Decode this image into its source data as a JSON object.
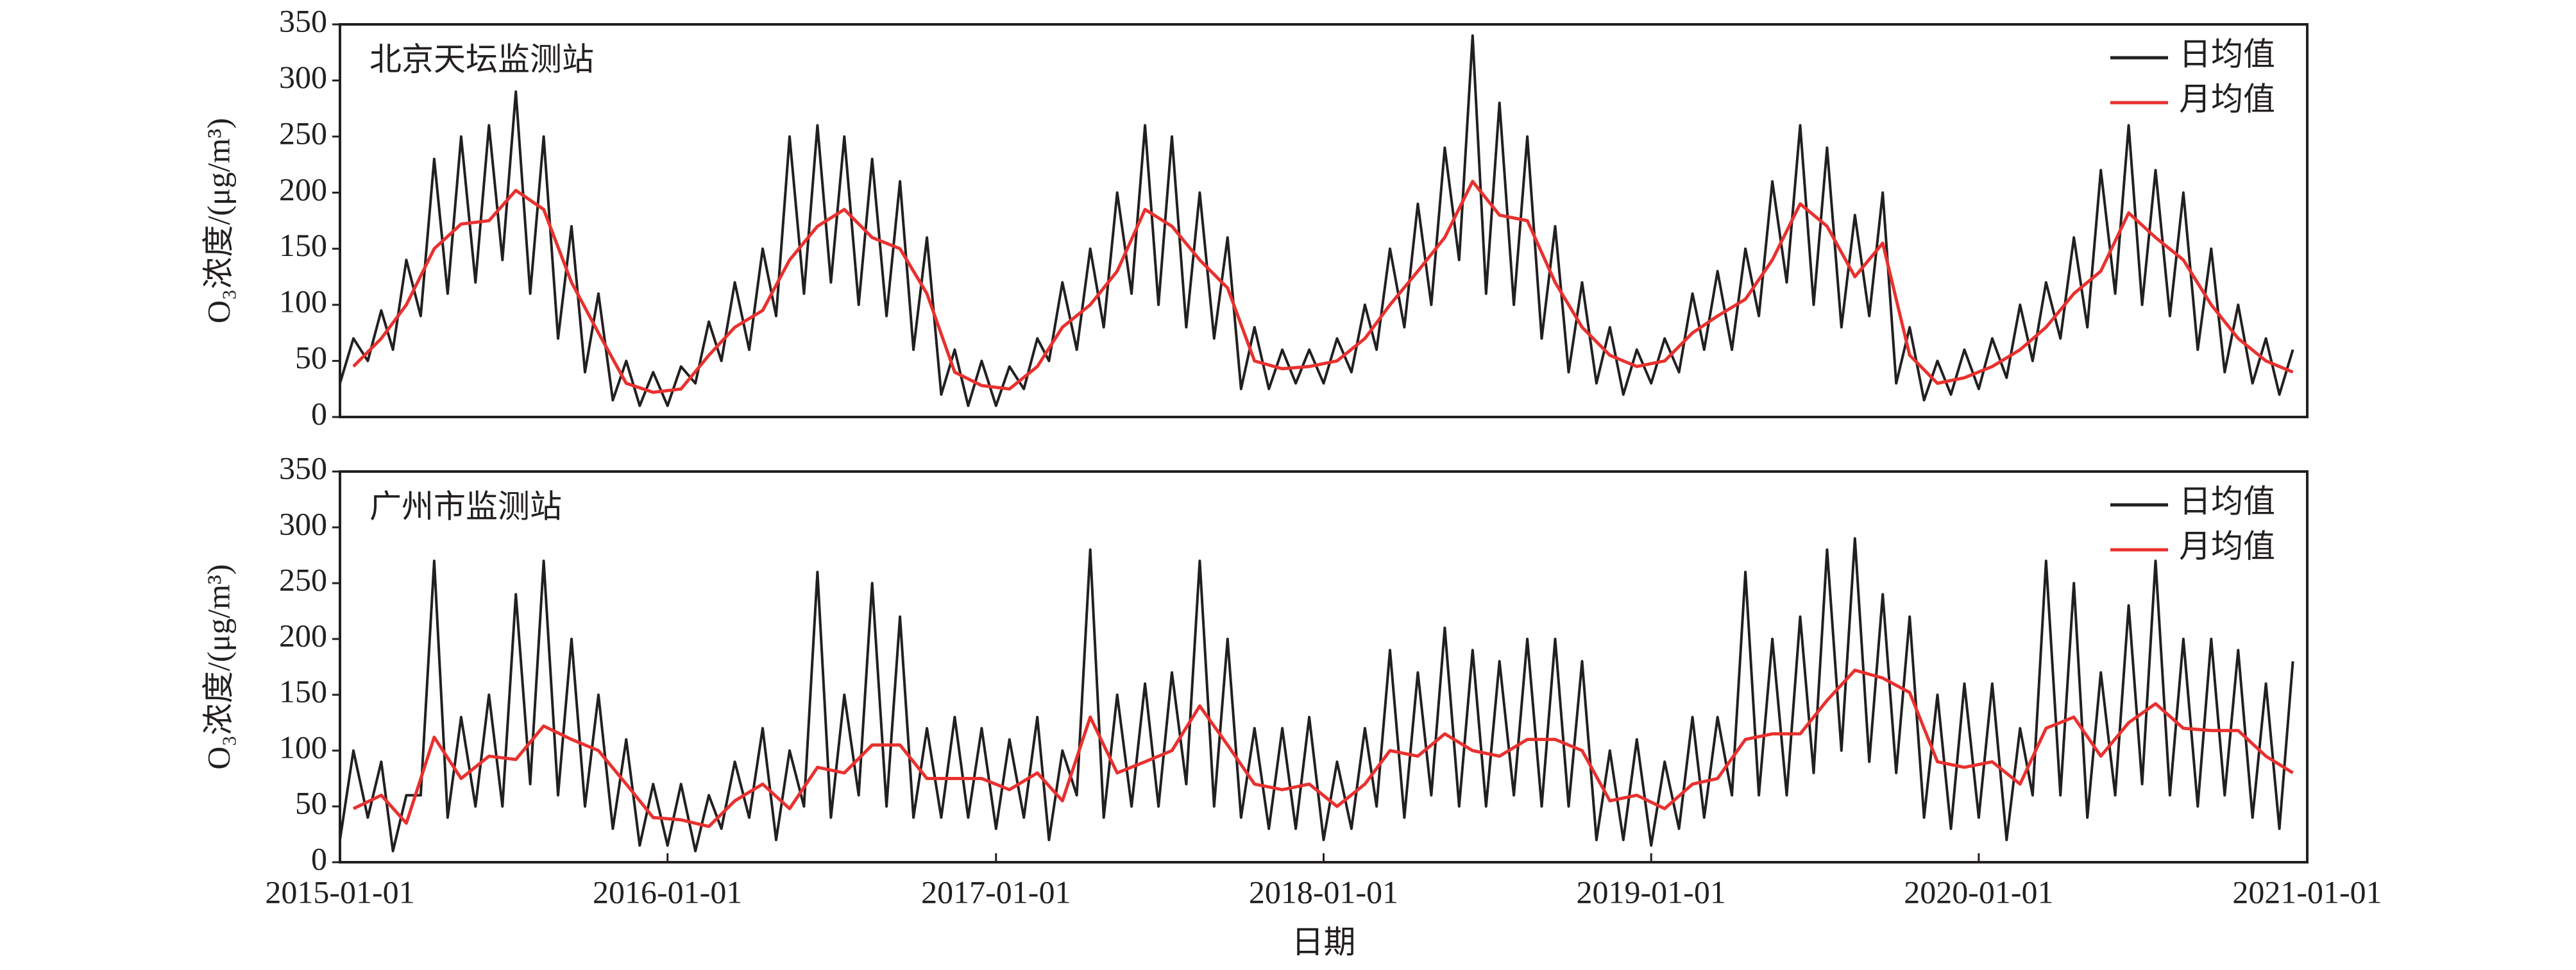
{
  "chart_data": [
    {
      "type": "line",
      "annotation": "北京天坛监测站",
      "y_label": "O₃浓度/(μg/m³)",
      "xlim": [
        "2015-01-01",
        "2021-01-01"
      ],
      "ylim": [
        0,
        350
      ],
      "yticks": [
        0,
        50,
        100,
        150,
        200,
        250,
        300,
        350
      ],
      "legend": "upper right",
      "series": [
        {
          "name": "日均值",
          "color": "#231f20",
          "x": [
            "2015-01-01",
            "2015-01-16",
            "2015-02-01",
            "2015-02-16",
            "2015-03-01",
            "2015-03-16",
            "2015-04-01",
            "2015-04-16",
            "2015-05-01",
            "2015-05-16",
            "2015-06-01",
            "2015-06-16",
            "2015-07-01",
            "2015-07-16",
            "2015-08-01",
            "2015-08-16",
            "2015-09-01",
            "2015-09-16",
            "2015-10-01",
            "2015-10-16",
            "2015-11-01",
            "2015-11-16",
            "2015-12-01",
            "2015-12-16",
            "2016-01-01",
            "2016-01-16",
            "2016-02-01",
            "2016-02-16",
            "2016-03-01",
            "2016-03-16",
            "2016-04-01",
            "2016-04-16",
            "2016-05-01",
            "2016-05-16",
            "2016-06-01",
            "2016-06-16",
            "2016-07-01",
            "2016-07-16",
            "2016-08-01",
            "2016-08-16",
            "2016-09-01",
            "2016-09-16",
            "2016-10-01",
            "2016-10-16",
            "2016-11-01",
            "2016-11-16",
            "2016-12-01",
            "2016-12-16",
            "2017-01-01",
            "2017-01-16",
            "2017-02-01",
            "2017-02-16",
            "2017-03-01",
            "2017-03-16",
            "2017-04-01",
            "2017-04-16",
            "2017-05-01",
            "2017-05-16",
            "2017-06-01",
            "2017-06-16",
            "2017-07-01",
            "2017-07-16",
            "2017-08-01",
            "2017-08-16",
            "2017-09-01",
            "2017-09-16",
            "2017-10-01",
            "2017-10-16",
            "2017-11-01",
            "2017-11-16",
            "2017-12-01",
            "2017-12-16",
            "2018-01-01",
            "2018-01-16",
            "2018-02-01",
            "2018-02-16",
            "2018-03-01",
            "2018-03-16",
            "2018-04-01",
            "2018-04-16",
            "2018-05-01",
            "2018-05-16",
            "2018-06-01",
            "2018-06-16",
            "2018-07-01",
            "2018-07-16",
            "2018-08-01",
            "2018-08-16",
            "2018-09-01",
            "2018-09-16",
            "2018-10-01",
            "2018-10-16",
            "2018-11-01",
            "2018-11-16",
            "2018-12-01",
            "2018-12-16",
            "2019-01-01",
            "2019-01-16",
            "2019-02-01",
            "2019-02-16",
            "2019-03-01",
            "2019-03-16",
            "2019-04-01",
            "2019-04-16",
            "2019-05-01",
            "2019-05-16",
            "2019-06-01",
            "2019-06-16",
            "2019-07-01",
            "2019-07-16",
            "2019-08-01",
            "2019-08-16",
            "2019-09-01",
            "2019-09-16",
            "2019-10-01",
            "2019-10-16",
            "2019-11-01",
            "2019-11-16",
            "2019-12-01",
            "2019-12-16",
            "2020-01-01",
            "2020-01-16",
            "2020-02-01",
            "2020-02-16",
            "2020-03-01",
            "2020-03-16",
            "2020-04-01",
            "2020-04-16",
            "2020-05-01",
            "2020-05-16",
            "2020-06-01",
            "2020-06-16",
            "2020-07-01",
            "2020-07-16",
            "2020-08-01",
            "2020-08-16",
            "2020-09-01",
            "2020-09-16",
            "2020-10-01",
            "2020-10-16",
            "2020-11-01",
            "2020-11-16",
            "2020-12-01",
            "2020-12-16"
          ],
          "values": [
            30,
            70,
            50,
            95,
            60,
            140,
            90,
            230,
            110,
            250,
            120,
            260,
            140,
            290,
            110,
            250,
            70,
            170,
            40,
            110,
            15,
            50,
            10,
            40,
            10,
            45,
            30,
            85,
            50,
            120,
            60,
            150,
            90,
            250,
            110,
            260,
            120,
            250,
            100,
            230,
            90,
            210,
            60,
            160,
            20,
            60,
            10,
            50,
            10,
            45,
            25,
            70,
            50,
            120,
            60,
            150,
            80,
            200,
            110,
            260,
            100,
            250,
            80,
            200,
            70,
            160,
            25,
            80,
            25,
            60,
            30,
            60,
            30,
            70,
            40,
            100,
            60,
            150,
            80,
            190,
            100,
            240,
            140,
            340,
            110,
            280,
            100,
            250,
            70,
            170,
            40,
            120,
            30,
            80,
            20,
            60,
            30,
            70,
            40,
            110,
            60,
            130,
            60,
            150,
            90,
            210,
            120,
            260,
            100,
            240,
            80,
            180,
            90,
            200,
            30,
            80,
            15,
            50,
            20,
            60,
            25,
            70,
            35,
            100,
            50,
            120,
            70,
            160,
            80,
            220,
            110,
            260,
            100,
            220,
            90,
            200,
            60,
            150,
            40,
            100,
            30,
            70,
            20,
            60
          ]
        },
        {
          "name": "月均值",
          "color": "#e8312f",
          "x": [
            "2015-01-16",
            "2015-02-16",
            "2015-03-16",
            "2015-04-16",
            "2015-05-16",
            "2015-06-16",
            "2015-07-16",
            "2015-08-16",
            "2015-09-16",
            "2015-10-16",
            "2015-11-16",
            "2015-12-16",
            "2016-01-16",
            "2016-02-16",
            "2016-03-16",
            "2016-04-16",
            "2016-05-16",
            "2016-06-16",
            "2016-07-16",
            "2016-08-16",
            "2016-09-16",
            "2016-10-16",
            "2016-11-16",
            "2016-12-16",
            "2017-01-16",
            "2017-02-16",
            "2017-03-16",
            "2017-04-16",
            "2017-05-16",
            "2017-06-16",
            "2017-07-16",
            "2017-08-16",
            "2017-09-16",
            "2017-10-16",
            "2017-11-16",
            "2017-12-16",
            "2018-01-16",
            "2018-02-16",
            "2018-03-16",
            "2018-04-16",
            "2018-05-16",
            "2018-06-16",
            "2018-07-16",
            "2018-08-16",
            "2018-09-16",
            "2018-10-16",
            "2018-11-16",
            "2018-12-16",
            "2019-01-16",
            "2019-02-16",
            "2019-03-16",
            "2019-04-16",
            "2019-05-16",
            "2019-06-16",
            "2019-07-16",
            "2019-08-16",
            "2019-09-16",
            "2019-10-16",
            "2019-11-16",
            "2019-12-16",
            "2020-01-16",
            "2020-02-16",
            "2020-03-16",
            "2020-04-16",
            "2020-05-16",
            "2020-06-16",
            "2020-07-16",
            "2020-08-16",
            "2020-09-16",
            "2020-10-16",
            "2020-11-16",
            "2020-12-16"
          ],
          "values": [
            45,
            70,
            100,
            150,
            172,
            175,
            202,
            185,
            120,
            75,
            30,
            22,
            25,
            55,
            80,
            95,
            140,
            170,
            185,
            160,
            150,
            110,
            40,
            28,
            25,
            45,
            80,
            100,
            130,
            185,
            170,
            140,
            115,
            50,
            43,
            45,
            50,
            70,
            100,
            130,
            160,
            210,
            180,
            175,
            120,
            80,
            55,
            45,
            50,
            75,
            90,
            105,
            140,
            190,
            170,
            125,
            155,
            55,
            30,
            35,
            45,
            60,
            80,
            110,
            130,
            182,
            160,
            140,
            100,
            70,
            50,
            40
          ]
        }
      ]
    },
    {
      "type": "line",
      "annotation": "广州市监测站",
      "y_label": "O₃浓度/(μg/m³)",
      "x_label": "日期",
      "xlim": [
        "2015-01-01",
        "2021-01-01"
      ],
      "xticks": [
        "2015-01-01",
        "2016-01-01",
        "2017-01-01",
        "2018-01-01",
        "2019-01-01",
        "2020-01-01",
        "2021-01-01"
      ],
      "ylim": [
        0,
        350
      ],
      "yticks": [
        0,
        50,
        100,
        150,
        200,
        250,
        300,
        350
      ],
      "legend": "upper right",
      "series": [
        {
          "name": "日均值",
          "color": "#231f20",
          "x": [
            "2015-01-01",
            "2015-01-16",
            "2015-02-01",
            "2015-02-16",
            "2015-03-01",
            "2015-03-16",
            "2015-04-01",
            "2015-04-16",
            "2015-05-01",
            "2015-05-16",
            "2015-06-01",
            "2015-06-16",
            "2015-07-01",
            "2015-07-16",
            "2015-08-01",
            "2015-08-16",
            "2015-09-01",
            "2015-09-16",
            "2015-10-01",
            "2015-10-16",
            "2015-11-01",
            "2015-11-16",
            "2015-12-01",
            "2015-12-16",
            "2016-01-01",
            "2016-01-16",
            "2016-02-01",
            "2016-02-16",
            "2016-03-01",
            "2016-03-16",
            "2016-04-01",
            "2016-04-16",
            "2016-05-01",
            "2016-05-16",
            "2016-06-01",
            "2016-06-16",
            "2016-07-01",
            "2016-07-16",
            "2016-08-01",
            "2016-08-16",
            "2016-09-01",
            "2016-09-16",
            "2016-10-01",
            "2016-10-16",
            "2016-11-01",
            "2016-11-16",
            "2016-12-01",
            "2016-12-16",
            "2017-01-01",
            "2017-01-16",
            "2017-02-01",
            "2017-02-16",
            "2017-03-01",
            "2017-03-16",
            "2017-04-01",
            "2017-04-16",
            "2017-05-01",
            "2017-05-16",
            "2017-06-01",
            "2017-06-16",
            "2017-07-01",
            "2017-07-16",
            "2017-08-01",
            "2017-08-16",
            "2017-09-01",
            "2017-09-16",
            "2017-10-01",
            "2017-10-16",
            "2017-11-01",
            "2017-11-16",
            "2017-12-01",
            "2017-12-16",
            "2018-01-01",
            "2018-01-16",
            "2018-02-01",
            "2018-02-16",
            "2018-03-01",
            "2018-03-16",
            "2018-04-01",
            "2018-04-16",
            "2018-05-01",
            "2018-05-16",
            "2018-06-01",
            "2018-06-16",
            "2018-07-01",
            "2018-07-16",
            "2018-08-01",
            "2018-08-16",
            "2018-09-01",
            "2018-09-16",
            "2018-10-01",
            "2018-10-16",
            "2018-11-01",
            "2018-11-16",
            "2018-12-01",
            "2018-12-16",
            "2019-01-01",
            "2019-01-16",
            "2019-02-01",
            "2019-02-16",
            "2019-03-01",
            "2019-03-16",
            "2019-04-01",
            "2019-04-16",
            "2019-05-01",
            "2019-05-16",
            "2019-06-01",
            "2019-06-16",
            "2019-07-01",
            "2019-07-16",
            "2019-08-01",
            "2019-08-16",
            "2019-09-01",
            "2019-09-16",
            "2019-10-01",
            "2019-10-16",
            "2019-11-01",
            "2019-11-16",
            "2019-12-01",
            "2019-12-16",
            "2020-01-01",
            "2020-01-16",
            "2020-02-01",
            "2020-02-16",
            "2020-03-01",
            "2020-03-16",
            "2020-04-01",
            "2020-04-16",
            "2020-05-01",
            "2020-05-16",
            "2020-06-01",
            "2020-06-16",
            "2020-07-01",
            "2020-07-16",
            "2020-08-01",
            "2020-08-16",
            "2020-09-01",
            "2020-09-16",
            "2020-10-01",
            "2020-10-16",
            "2020-11-01",
            "2020-11-16",
            "2020-12-01",
            "2020-12-16"
          ],
          "values": [
            20,
            100,
            40,
            90,
            10,
            60,
            60,
            270,
            40,
            130,
            50,
            150,
            50,
            240,
            70,
            270,
            60,
            200,
            50,
            150,
            30,
            110,
            15,
            70,
            15,
            70,
            10,
            60,
            30,
            90,
            40,
            120,
            20,
            100,
            50,
            260,
            40,
            150,
            60,
            250,
            50,
            220,
            40,
            120,
            40,
            130,
            40,
            120,
            30,
            110,
            40,
            130,
            20,
            100,
            60,
            280,
            40,
            150,
            50,
            160,
            50,
            170,
            70,
            270,
            50,
            200,
            40,
            120,
            30,
            120,
            30,
            130,
            20,
            90,
            30,
            120,
            50,
            190,
            40,
            170,
            60,
            210,
            50,
            190,
            50,
            180,
            60,
            200,
            50,
            200,
            50,
            180,
            20,
            100,
            20,
            110,
            15,
            90,
            30,
            130,
            40,
            130,
            60,
            260,
            60,
            200,
            60,
            220,
            80,
            280,
            100,
            290,
            90,
            240,
            80,
            220,
            40,
            150,
            30,
            160,
            40,
            160,
            20,
            120,
            60,
            270,
            60,
            250,
            40,
            170,
            60,
            230,
            70,
            270,
            60,
            200,
            50,
            200,
            60,
            190,
            40,
            160,
            30,
            180
          ]
        },
        {
          "name": "月均值",
          "color": "#e8312f",
          "x": [
            "2015-01-16",
            "2015-02-16",
            "2015-03-16",
            "2015-04-16",
            "2015-05-16",
            "2015-06-16",
            "2015-07-16",
            "2015-08-16",
            "2015-09-16",
            "2015-10-16",
            "2015-11-16",
            "2015-12-16",
            "2016-01-16",
            "2016-02-16",
            "2016-03-16",
            "2016-04-16",
            "2016-05-16",
            "2016-06-16",
            "2016-07-16",
            "2016-08-16",
            "2016-09-16",
            "2016-10-16",
            "2016-11-16",
            "2016-12-16",
            "2017-01-16",
            "2017-02-16",
            "2017-03-16",
            "2017-04-16",
            "2017-05-16",
            "2017-06-16",
            "2017-07-16",
            "2017-08-16",
            "2017-09-16",
            "2017-10-16",
            "2017-11-16",
            "2017-12-16",
            "2018-01-16",
            "2018-02-16",
            "2018-03-16",
            "2018-04-16",
            "2018-05-16",
            "2018-06-16",
            "2018-07-16",
            "2018-08-16",
            "2018-09-16",
            "2018-10-16",
            "2018-11-16",
            "2018-12-16",
            "2019-01-16",
            "2019-02-16",
            "2019-03-16",
            "2019-04-16",
            "2019-05-16",
            "2019-06-16",
            "2019-07-16",
            "2019-08-16",
            "2019-09-16",
            "2019-10-16",
            "2019-11-16",
            "2019-12-16",
            "2020-01-16",
            "2020-02-16",
            "2020-03-16",
            "2020-04-16",
            "2020-05-16",
            "2020-06-16",
            "2020-07-16",
            "2020-08-16",
            "2020-09-16",
            "2020-10-16",
            "2020-11-16",
            "2020-12-16"
          ],
          "values": [
            48,
            60,
            35,
            112,
            75,
            95,
            92,
            122,
            110,
            100,
            70,
            40,
            38,
            32,
            55,
            70,
            48,
            85,
            80,
            105,
            105,
            75,
            75,
            75,
            65,
            80,
            55,
            130,
            80,
            90,
            100,
            140,
            105,
            70,
            65,
            70,
            50,
            70,
            100,
            95,
            115,
            100,
            95,
            110,
            110,
            100,
            55,
            60,
            48,
            70,
            75,
            110,
            115,
            115,
            145,
            172,
            165,
            152,
            90,
            85,
            90,
            70,
            120,
            130,
            95,
            125,
            142,
            120,
            118,
            118,
            95,
            80
          ]
        }
      ]
    }
  ]
}
